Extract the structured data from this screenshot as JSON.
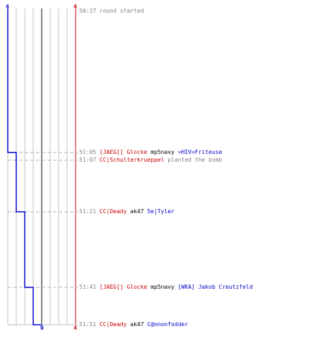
{
  "scoreboard": {
    "top_left": "4",
    "top_right": "4",
    "bottom_center": "0",
    "bottom_right": "4",
    "colors": {
      "team_blue": "#0000cc",
      "team_red": "#cc0000",
      "grid": "#c0c0c0",
      "center": "#808080",
      "dash": "#b0b0b0"
    }
  },
  "events": [
    {
      "time": "50:27",
      "parts": [
        {
          "text": "round started",
          "color": "g"
        }
      ]
    },
    {
      "time": "51:05",
      "parts": [
        {
          "text": "[JAEG[] Glocke",
          "color": "r"
        },
        {
          "text": " mp5navy ",
          "color": "k"
        },
        {
          "text": "=HIV=Friteuse",
          "color": "b"
        }
      ]
    },
    {
      "time": "51:07",
      "parts": [
        {
          "text": "CC|Schulterkrueppel",
          "color": "r"
        },
        {
          "text": " planted the bomb",
          "color": "g"
        }
      ]
    },
    {
      "time": "51:21",
      "parts": [
        {
          "text": "CC|Deady",
          "color": "r"
        },
        {
          "text": " ak47 ",
          "color": "k"
        },
        {
          "text": "5e|Tyler",
          "color": "b"
        }
      ]
    },
    {
      "time": "51:41",
      "parts": [
        {
          "text": "[JAEG[] Glocke",
          "color": "r"
        },
        {
          "text": " mp5navy ",
          "color": "k"
        },
        {
          "text": "[WKA] Jakob Creutzfeld",
          "color": "b"
        }
      ]
    },
    {
      "time": "51:51",
      "parts": [
        {
          "text": "CC|Deady",
          "color": "r"
        },
        {
          "text": " ak47 ",
          "color": "k"
        },
        {
          "text": "C@nnonfodder",
          "color": "b"
        }
      ]
    }
  ]
}
